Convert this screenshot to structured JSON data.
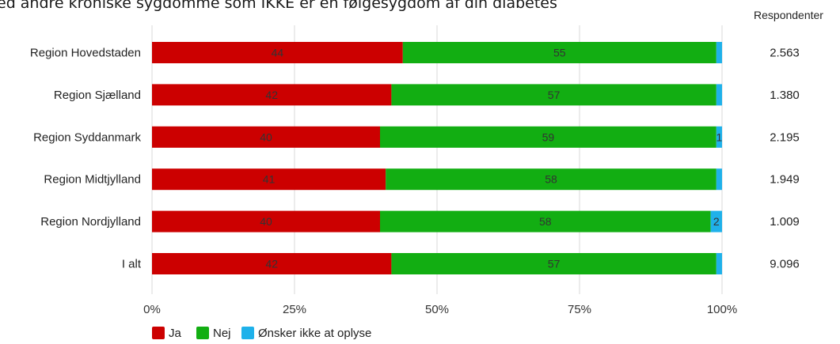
{
  "chart_data": {
    "type": "bar",
    "orientation": "horizontal",
    "stacked": true,
    "title": "ed andre kroniske sygdomme som IKKE er en følgesygdom af din diabetes",
    "categories": [
      "Region Hovedstaden",
      "Region Sjælland",
      "Region Syddanmark",
      "Region Midtjylland",
      "Region Nordjylland",
      "I alt"
    ],
    "series": [
      {
        "name": "Ja",
        "color": "#cc0000",
        "values": [
          44,
          42,
          40,
          41,
          40,
          42
        ],
        "labels": [
          "44",
          "42",
          "40",
          "41",
          "40",
          "42"
        ]
      },
      {
        "name": "Nej",
        "color": "#12ae12",
        "values": [
          55,
          57,
          59,
          58,
          58,
          57
        ],
        "labels": [
          "55",
          "57",
          "59",
          "58",
          "58",
          "57"
        ]
      },
      {
        "name": "Ønsker ikke at oplyse",
        "color": "#1fb1ea",
        "values": [
          1,
          1,
          1,
          1,
          2,
          1
        ],
        "labels": [
          "",
          "",
          "1",
          "",
          "2",
          ""
        ]
      }
    ],
    "xlim": [
      0,
      100
    ],
    "xticks": [
      "0%",
      "25%",
      "50%",
      "75%",
      "100%"
    ],
    "respondents_header": "Respondenter",
    "respondents": [
      "2.563",
      "1.380",
      "2.195",
      "1.949",
      "1.009",
      "9.096"
    ],
    "grid": true,
    "legend_position": "bottom-left"
  }
}
